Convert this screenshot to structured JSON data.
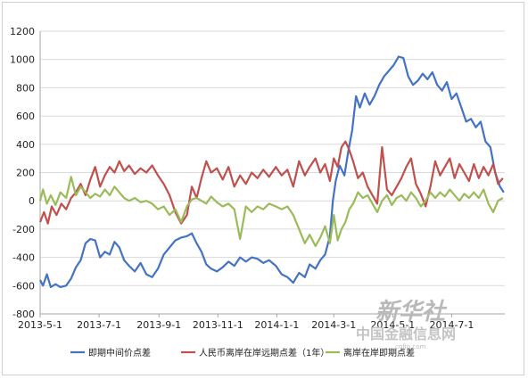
{
  "chart_data": {
    "type": "line",
    "title": "",
    "xlabel": "",
    "ylabel": "",
    "ylim": [
      -800,
      1200
    ],
    "yticks": [
      -800,
      -600,
      -400,
      -200,
      0,
      200,
      400,
      600,
      800,
      1000,
      1200
    ],
    "xlim": [
      "2013-05-01",
      "2014-08-25"
    ],
    "xticks": [
      "2013-5-1",
      "2013-7-1",
      "2013-9-1",
      "2013-11-1",
      "2014-1-1",
      "2014-3-1",
      "2014-5-1",
      "2014-7-1"
    ],
    "grid": "horizontal",
    "legend": "bottom",
    "series": [
      {
        "name": "即期中间价点差",
        "color": "#4472c4",
        "points": [
          [
            "2013-05-01",
            -560
          ],
          [
            "2013-05-04",
            -600
          ],
          [
            "2013-05-08",
            -520
          ],
          [
            "2013-05-12",
            -610
          ],
          [
            "2013-05-17",
            -590
          ],
          [
            "2013-05-22",
            -610
          ],
          [
            "2013-05-28",
            -600
          ],
          [
            "2013-06-02",
            -550
          ],
          [
            "2013-06-07",
            -470
          ],
          [
            "2013-06-12",
            -420
          ],
          [
            "2013-06-17",
            -300
          ],
          [
            "2013-06-22",
            -270
          ],
          [
            "2013-06-27",
            -280
          ],
          [
            "2013-07-02",
            -400
          ],
          [
            "2013-07-07",
            -360
          ],
          [
            "2013-07-12",
            -380
          ],
          [
            "2013-07-17",
            -290
          ],
          [
            "2013-07-22",
            -330
          ],
          [
            "2013-07-27",
            -420
          ],
          [
            "2013-08-01",
            -460
          ],
          [
            "2013-08-07",
            -500
          ],
          [
            "2013-08-13",
            -440
          ],
          [
            "2013-08-19",
            -520
          ],
          [
            "2013-08-25",
            -540
          ],
          [
            "2013-08-31",
            -480
          ],
          [
            "2013-09-06",
            -380
          ],
          [
            "2013-09-12",
            -330
          ],
          [
            "2013-09-18",
            -280
          ],
          [
            "2013-09-24",
            -260
          ],
          [
            "2013-09-30",
            -250
          ],
          [
            "2013-10-05",
            -230
          ],
          [
            "2013-10-10",
            -300
          ],
          [
            "2013-10-15",
            -360
          ],
          [
            "2013-10-20",
            -450
          ],
          [
            "2013-10-25",
            -480
          ],
          [
            "2013-10-31",
            -500
          ],
          [
            "2013-11-06",
            -470
          ],
          [
            "2013-11-12",
            -430
          ],
          [
            "2013-11-18",
            -460
          ],
          [
            "2013-11-24",
            -400
          ],
          [
            "2013-11-30",
            -430
          ],
          [
            "2013-12-06",
            -400
          ],
          [
            "2013-12-12",
            -410
          ],
          [
            "2013-12-18",
            -440
          ],
          [
            "2013-12-24",
            -420
          ],
          [
            "2013-12-31",
            -460
          ],
          [
            "2014-01-06",
            -520
          ],
          [
            "2014-01-12",
            -540
          ],
          [
            "2014-01-18",
            -580
          ],
          [
            "2014-01-24",
            -510
          ],
          [
            "2014-01-30",
            -540
          ],
          [
            "2014-02-04",
            -450
          ],
          [
            "2014-02-10",
            -480
          ],
          [
            "2014-02-15",
            -420
          ],
          [
            "2014-02-20",
            -380
          ],
          [
            "2014-02-25",
            -250
          ],
          [
            "2014-02-28",
            0
          ],
          [
            "2014-03-03",
            140
          ],
          [
            "2014-03-07",
            250
          ],
          [
            "2014-03-12",
            180
          ],
          [
            "2014-03-16",
            350
          ],
          [
            "2014-03-20",
            500
          ],
          [
            "2014-03-24",
            740
          ],
          [
            "2014-03-28",
            660
          ],
          [
            "2014-04-02",
            760
          ],
          [
            "2014-04-07",
            680
          ],
          [
            "2014-04-12",
            740
          ],
          [
            "2014-04-17",
            820
          ],
          [
            "2014-04-22",
            880
          ],
          [
            "2014-04-27",
            920
          ],
          [
            "2014-05-02",
            960
          ],
          [
            "2014-05-07",
            1020
          ],
          [
            "2014-05-12",
            1010
          ],
          [
            "2014-05-17",
            880
          ],
          [
            "2014-05-22",
            820
          ],
          [
            "2014-05-27",
            850
          ],
          [
            "2014-06-01",
            900
          ],
          [
            "2014-06-06",
            860
          ],
          [
            "2014-06-11",
            910
          ],
          [
            "2014-06-16",
            820
          ],
          [
            "2014-06-21",
            780
          ],
          [
            "2014-06-26",
            840
          ],
          [
            "2014-07-01",
            720
          ],
          [
            "2014-07-06",
            760
          ],
          [
            "2014-07-11",
            660
          ],
          [
            "2014-07-16",
            560
          ],
          [
            "2014-07-21",
            580
          ],
          [
            "2014-07-26",
            520
          ],
          [
            "2014-07-31",
            560
          ],
          [
            "2014-08-05",
            420
          ],
          [
            "2014-08-10",
            380
          ],
          [
            "2014-08-15",
            200
          ],
          [
            "2014-08-20",
            100
          ],
          [
            "2014-08-24",
            60
          ]
        ]
      },
      {
        "name": "人民币离岸在岸远期点差（1年）",
        "color": "#c0504d",
        "points": [
          [
            "2013-05-01",
            -150
          ],
          [
            "2013-05-05",
            -80
          ],
          [
            "2013-05-09",
            -160
          ],
          [
            "2013-05-13",
            -40
          ],
          [
            "2013-05-18",
            -100
          ],
          [
            "2013-05-23",
            -20
          ],
          [
            "2013-05-28",
            -60
          ],
          [
            "2013-06-02",
            20
          ],
          [
            "2013-06-07",
            60
          ],
          [
            "2013-06-12",
            120
          ],
          [
            "2013-06-17",
            40
          ],
          [
            "2013-06-22",
            150
          ],
          [
            "2013-06-27",
            240
          ],
          [
            "2013-07-02",
            100
          ],
          [
            "2013-07-07",
            180
          ],
          [
            "2013-07-12",
            240
          ],
          [
            "2013-07-17",
            200
          ],
          [
            "2013-07-22",
            280
          ],
          [
            "2013-07-27",
            210
          ],
          [
            "2013-08-01",
            250
          ],
          [
            "2013-08-07",
            190
          ],
          [
            "2013-08-13",
            230
          ],
          [
            "2013-08-19",
            200
          ],
          [
            "2013-08-25",
            250
          ],
          [
            "2013-08-31",
            180
          ],
          [
            "2013-09-06",
            120
          ],
          [
            "2013-09-12",
            40
          ],
          [
            "2013-09-18",
            -80
          ],
          [
            "2013-09-24",
            -160
          ],
          [
            "2013-09-30",
            -100
          ],
          [
            "2013-10-05",
            100
          ],
          [
            "2013-10-10",
            20
          ],
          [
            "2013-10-15",
            160
          ],
          [
            "2013-10-20",
            280
          ],
          [
            "2013-10-25",
            200
          ],
          [
            "2013-10-31",
            230
          ],
          [
            "2013-11-06",
            150
          ],
          [
            "2013-11-12",
            240
          ],
          [
            "2013-11-18",
            100
          ],
          [
            "2013-11-24",
            180
          ],
          [
            "2013-11-30",
            120
          ],
          [
            "2013-12-06",
            200
          ],
          [
            "2013-12-12",
            160
          ],
          [
            "2013-12-18",
            220
          ],
          [
            "2013-12-24",
            170
          ],
          [
            "2013-12-31",
            240
          ],
          [
            "2014-01-06",
            180
          ],
          [
            "2014-01-12",
            220
          ],
          [
            "2014-01-18",
            100
          ],
          [
            "2014-01-24",
            280
          ],
          [
            "2014-01-30",
            180
          ],
          [
            "2014-02-04",
            240
          ],
          [
            "2014-02-10",
            300
          ],
          [
            "2014-02-15",
            200
          ],
          [
            "2014-02-20",
            260
          ],
          [
            "2014-02-25",
            140
          ],
          [
            "2014-03-01",
            300
          ],
          [
            "2014-03-05",
            240
          ],
          [
            "2014-03-09",
            380
          ],
          [
            "2014-03-13",
            420
          ],
          [
            "2014-03-17",
            360
          ],
          [
            "2014-03-21",
            280
          ],
          [
            "2014-03-26",
            160
          ],
          [
            "2014-03-31",
            200
          ],
          [
            "2014-04-05",
            100
          ],
          [
            "2014-04-10",
            40
          ],
          [
            "2014-04-15",
            -20
          ],
          [
            "2014-04-20",
            380
          ],
          [
            "2014-04-25",
            80
          ],
          [
            "2014-04-30",
            40
          ],
          [
            "2014-05-05",
            100
          ],
          [
            "2014-05-10",
            160
          ],
          [
            "2014-05-15",
            240
          ],
          [
            "2014-05-20",
            300
          ],
          [
            "2014-05-25",
            120
          ],
          [
            "2014-05-30",
            50
          ],
          [
            "2014-06-04",
            -40
          ],
          [
            "2014-06-09",
            100
          ],
          [
            "2014-06-14",
            280
          ],
          [
            "2014-06-19",
            180
          ],
          [
            "2014-06-24",
            240
          ],
          [
            "2014-06-29",
            300
          ],
          [
            "2014-07-04",
            160
          ],
          [
            "2014-07-09",
            260
          ],
          [
            "2014-07-14",
            200
          ],
          [
            "2014-07-19",
            140
          ],
          [
            "2014-07-24",
            260
          ],
          [
            "2014-07-29",
            160
          ],
          [
            "2014-08-03",
            240
          ],
          [
            "2014-08-08",
            180
          ],
          [
            "2014-08-13",
            260
          ],
          [
            "2014-08-18",
            120
          ],
          [
            "2014-08-23",
            160
          ]
        ]
      },
      {
        "name": "离岸在岸即期点差",
        "color": "#9bbb59",
        "points": [
          [
            "2013-05-01",
            0
          ],
          [
            "2013-05-04",
            80
          ],
          [
            "2013-05-08",
            -20
          ],
          [
            "2013-05-12",
            40
          ],
          [
            "2013-05-17",
            -30
          ],
          [
            "2013-05-22",
            60
          ],
          [
            "2013-05-28",
            20
          ],
          [
            "2013-06-02",
            170
          ],
          [
            "2013-06-07",
            40
          ],
          [
            "2013-06-12",
            100
          ],
          [
            "2013-06-17",
            60
          ],
          [
            "2013-06-22",
            20
          ],
          [
            "2013-06-27",
            50
          ],
          [
            "2013-07-02",
            30
          ],
          [
            "2013-07-07",
            80
          ],
          [
            "2013-07-12",
            40
          ],
          [
            "2013-07-17",
            100
          ],
          [
            "2013-07-22",
            60
          ],
          [
            "2013-07-27",
            20
          ],
          [
            "2013-08-01",
            0
          ],
          [
            "2013-08-07",
            20
          ],
          [
            "2013-08-13",
            -10
          ],
          [
            "2013-08-19",
            0
          ],
          [
            "2013-08-25",
            -20
          ],
          [
            "2013-08-31",
            -60
          ],
          [
            "2013-09-06",
            -40
          ],
          [
            "2013-09-12",
            -100
          ],
          [
            "2013-09-18",
            -60
          ],
          [
            "2013-09-24",
            -150
          ],
          [
            "2013-09-30",
            -40
          ],
          [
            "2013-10-05",
            10
          ],
          [
            "2013-10-10",
            20
          ],
          [
            "2013-10-15",
            0
          ],
          [
            "2013-10-20",
            -20
          ],
          [
            "2013-10-25",
            30
          ],
          [
            "2013-10-31",
            -10
          ],
          [
            "2013-11-06",
            -40
          ],
          [
            "2013-11-12",
            -20
          ],
          [
            "2013-11-18",
            -60
          ],
          [
            "2013-11-24",
            -270
          ],
          [
            "2013-11-30",
            -40
          ],
          [
            "2013-12-06",
            -80
          ],
          [
            "2013-12-12",
            -40
          ],
          [
            "2013-12-18",
            -60
          ],
          [
            "2013-12-24",
            -20
          ],
          [
            "2013-12-31",
            -40
          ],
          [
            "2014-01-06",
            -60
          ],
          [
            "2014-01-12",
            -40
          ],
          [
            "2014-01-18",
            -100
          ],
          [
            "2014-01-24",
            -200
          ],
          [
            "2014-01-30",
            -300
          ],
          [
            "2014-02-04",
            -240
          ],
          [
            "2014-02-10",
            -320
          ],
          [
            "2014-02-15",
            -260
          ],
          [
            "2014-02-20",
            -180
          ],
          [
            "2014-02-25",
            -300
          ],
          [
            "2014-03-01",
            -100
          ],
          [
            "2014-03-05",
            -280
          ],
          [
            "2014-03-09",
            -200
          ],
          [
            "2014-03-13",
            -150
          ],
          [
            "2014-03-17",
            -60
          ],
          [
            "2014-03-21",
            -20
          ],
          [
            "2014-03-26",
            60
          ],
          [
            "2014-03-31",
            20
          ],
          [
            "2014-04-05",
            40
          ],
          [
            "2014-04-10",
            -20
          ],
          [
            "2014-04-15",
            -80
          ],
          [
            "2014-04-20",
            0
          ],
          [
            "2014-04-25",
            40
          ],
          [
            "2014-04-30",
            -30
          ],
          [
            "2014-05-05",
            20
          ],
          [
            "2014-05-10",
            40
          ],
          [
            "2014-05-15",
            0
          ],
          [
            "2014-05-20",
            60
          ],
          [
            "2014-05-25",
            20
          ],
          [
            "2014-05-30",
            -40
          ],
          [
            "2014-06-04",
            0
          ],
          [
            "2014-06-09",
            60
          ],
          [
            "2014-06-14",
            20
          ],
          [
            "2014-06-19",
            60
          ],
          [
            "2014-06-24",
            30
          ],
          [
            "2014-06-29",
            80
          ],
          [
            "2014-07-04",
            40
          ],
          [
            "2014-07-09",
            0
          ],
          [
            "2014-07-14",
            50
          ],
          [
            "2014-07-19",
            20
          ],
          [
            "2014-07-24",
            60
          ],
          [
            "2014-07-29",
            20
          ],
          [
            "2014-08-03",
            80
          ],
          [
            "2014-08-08",
            -20
          ],
          [
            "2014-08-13",
            -80
          ],
          [
            "2014-08-18",
            0
          ],
          [
            "2014-08-23",
            20
          ]
        ]
      }
    ]
  },
  "watermark": {
    "agency": "新华社",
    "site": "中国金融信息网",
    "url": "cnfin.com"
  }
}
